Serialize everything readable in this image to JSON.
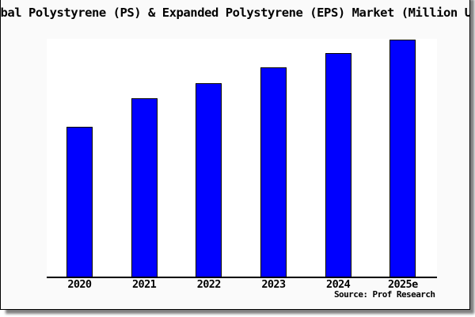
{
  "chart_data": {
    "type": "bar",
    "title": "bal Polystyrene (PS) & Expanded Polystyrene (EPS) Market (Million U",
    "title_clipped_at_image_edges": true,
    "categories": [
      "2020",
      "2021",
      "2022",
      "2023",
      "2024",
      "2025e"
    ],
    "values": [
      63,
      75,
      81.5,
      88,
      94,
      100
    ],
    "value_scale_note": "no y-axis ticks or labels shown; values are relative bar heights indexed to 2025e = 100",
    "source_text": "Source: Prof Research",
    "colors": {
      "bar_fill": "#0000FF",
      "bar_edge": "#000000",
      "plot_background": "#FFFFFF",
      "figure_background": "#FAFAFA",
      "frame_border": "#000000",
      "text": "#000000"
    },
    "layout": {
      "grid": false,
      "legend": false,
      "y_axis_visible": false,
      "x_axis_line": true,
      "x_tick_marks": false
    }
  }
}
